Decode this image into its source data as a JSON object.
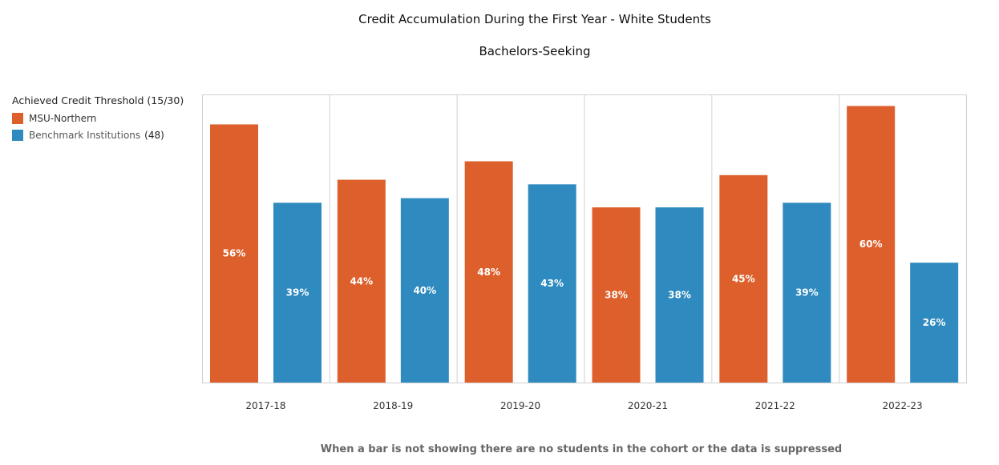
{
  "chart_data": {
    "type": "bar",
    "title": "Credit Accumulation During the First Year - White Students",
    "subtitle": "Bachelors-Seeking",
    "categories": [
      "2017-18",
      "2018-19",
      "2019-20",
      "2020-21",
      "2021-22",
      "2022-23"
    ],
    "series": [
      {
        "name": "MSU-Northern",
        "color": "#DD602C",
        "values": [
          56,
          44,
          48,
          38,
          45,
          60
        ],
        "labels": [
          "56%",
          "44%",
          "48%",
          "38%",
          "45%",
          "60%"
        ]
      },
      {
        "name": "Benchmark Institutions",
        "count": "(48)",
        "color": "#2E8ABF",
        "values": [
          39,
          40,
          43,
          38,
          39,
          26
        ],
        "labels": [
          "39%",
          "40%",
          "43%",
          "38%",
          "39%",
          "26%"
        ]
      }
    ],
    "legend_title": "Achieved Credit Threshold (15/30)",
    "legend_position": "top-left",
    "ylim": [
      0,
      62.5
    ],
    "grid": false
  },
  "note": "When a bar is not showing there are no students in the cohort or the data is suppressed"
}
